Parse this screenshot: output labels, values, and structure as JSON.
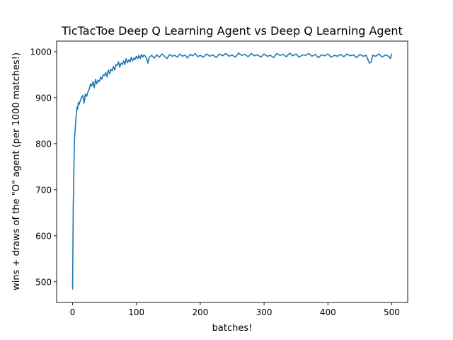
{
  "chart_data": {
    "type": "line",
    "title": "TicTacToe Deep Q Learning Agent vs Deep Q Learning Agent",
    "xlabel": "batches!",
    "ylabel": "wins + draws of the \"O\" agent (per 1000 matches!)",
    "xlim": [
      -25,
      525
    ],
    "ylim": [
      455,
      1023
    ],
    "xticks": [
      0,
      100,
      200,
      300,
      400,
      500
    ],
    "yticks": [
      500,
      600,
      700,
      800,
      900,
      1000
    ],
    "grid": false,
    "line_color": "#1f77b4",
    "series": [
      {
        "x": [
          0,
          1,
          2,
          3,
          4,
          5,
          6,
          7,
          8,
          9,
          10,
          12,
          14,
          16,
          18,
          20,
          22,
          24,
          26,
          28,
          30,
          32,
          34,
          36,
          38,
          40,
          42,
          44,
          46,
          48,
          50,
          52,
          54,
          56,
          58,
          60,
          62,
          64,
          66,
          68,
          70,
          72,
          74,
          76,
          78,
          80,
          82,
          84,
          86,
          88,
          90,
          92,
          94,
          96,
          98,
          100,
          102,
          104,
          106,
          108,
          110,
          112,
          114,
          116,
          118,
          120,
          124,
          128,
          132,
          136,
          140,
          144,
          148,
          152,
          156,
          160,
          164,
          168,
          172,
          176,
          180,
          184,
          188,
          192,
          196,
          200,
          205,
          210,
          215,
          220,
          225,
          230,
          235,
          240,
          245,
          250,
          255,
          260,
          265,
          270,
          275,
          280,
          285,
          290,
          295,
          300,
          305,
          310,
          315,
          320,
          325,
          330,
          335,
          340,
          345,
          350,
          355,
          360,
          365,
          370,
          375,
          380,
          385,
          390,
          395,
          400,
          405,
          410,
          415,
          420,
          425,
          430,
          435,
          440,
          445,
          450,
          455,
          460,
          465,
          468,
          470,
          475,
          480,
          485,
          490,
          495,
          498,
          500
        ],
        "y": [
          483,
          660,
          740,
          810,
          830,
          850,
          865,
          880,
          875,
          890,
          885,
          893,
          900,
          905,
          888,
          908,
          903,
          912,
          918,
          930,
          925,
          935,
          922,
          940,
          930,
          938,
          935,
          945,
          940,
          950,
          948,
          955,
          945,
          960,
          952,
          962,
          958,
          968,
          960,
          972,
          970,
          978,
          966,
          975,
          972,
          980,
          972,
          985,
          976,
          982,
          978,
          988,
          980,
          986,
          983,
          990,
          985,
          992,
          985,
          994,
          988,
          993,
          990,
          985,
          975,
          988,
          992,
          986,
          993,
          988,
          995,
          990,
          985,
          994,
          990,
          992,
          988,
          995,
          990,
          993,
          986,
          994,
          991,
          996,
          989,
          992,
          988,
          995,
          990,
          993,
          987,
          995,
          991,
          996,
          990,
          993,
          988,
          997,
          992,
          994,
          989,
          996,
          991,
          993,
          988,
          995,
          990,
          992,
          987,
          996,
          992,
          994,
          989,
          997,
          991,
          995,
          988,
          993,
          992,
          996,
          990,
          994,
          987,
          993,
          991,
          995,
          988,
          992,
          990,
          994,
          989,
          995,
          991,
          993,
          987,
          994,
          990,
          992,
          975,
          978,
          992,
          990,
          995,
          988,
          993,
          990,
          985,
          996
        ]
      }
    ]
  }
}
